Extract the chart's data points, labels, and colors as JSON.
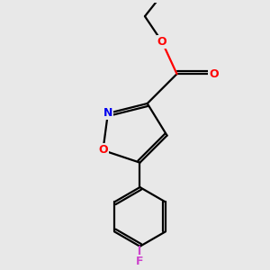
{
  "background_color": "#e8e8e8",
  "bond_color": "#000000",
  "N_color": "#0000ee",
  "O_color": "#ff0000",
  "F_color": "#cc44cc",
  "line_width": 1.6,
  "figsize": [
    3.0,
    3.0
  ],
  "dpi": 100,
  "xlim": [
    -2.0,
    2.0
  ],
  "ylim": [
    -3.5,
    1.8
  ]
}
